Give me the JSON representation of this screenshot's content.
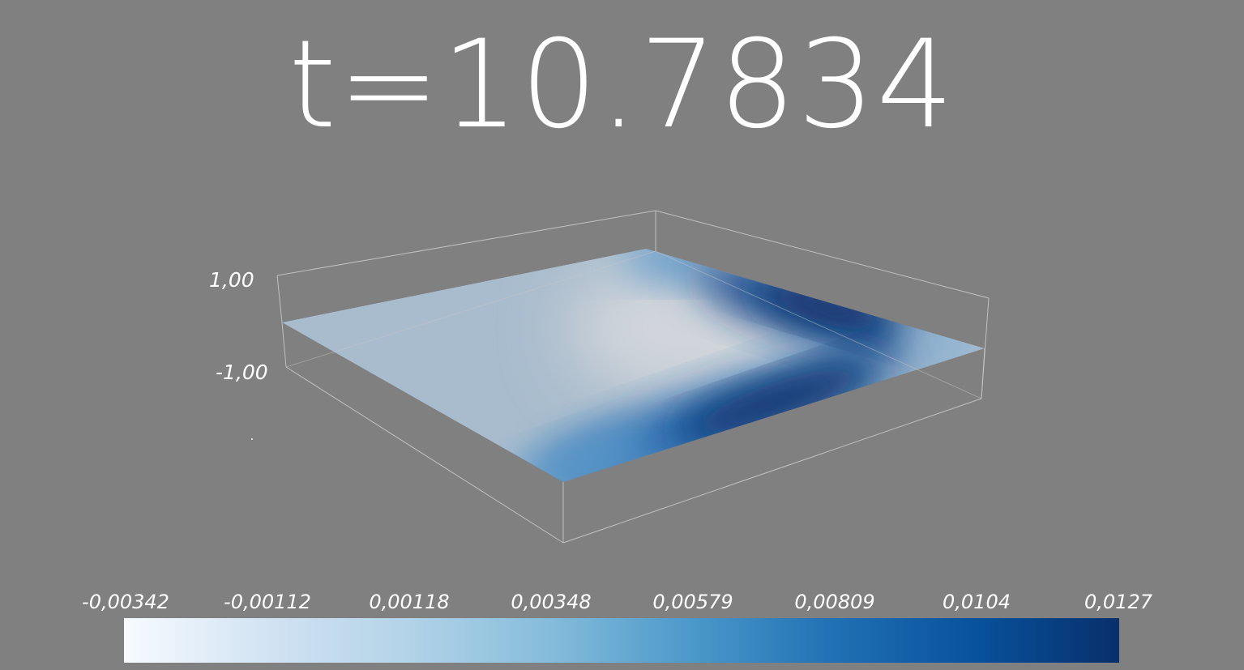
{
  "title": "t=10.7834",
  "axis": {
    "z_max_label": "1,00",
    "z_min_label": "-1,00"
  },
  "colorbar": {
    "tick_labels": [
      "-0,00342",
      "-0,00112",
      "0,00118",
      "0,00348",
      "0,00579",
      "0,00809",
      "0,0104",
      "0,0127"
    ],
    "stops": [
      "#f7fbff",
      "#d2e3f3",
      "#b3d3e8",
      "#85bcdb",
      "#4b98ca",
      "#2070b4",
      "#08519c",
      "#08306b"
    ]
  },
  "colors": {
    "background": "#808080",
    "surface_base": "#a8bccd",
    "surface_highlight": "#d0d5da",
    "surface_dark": "#082b60",
    "box_lines": "#c8c8c8"
  }
}
